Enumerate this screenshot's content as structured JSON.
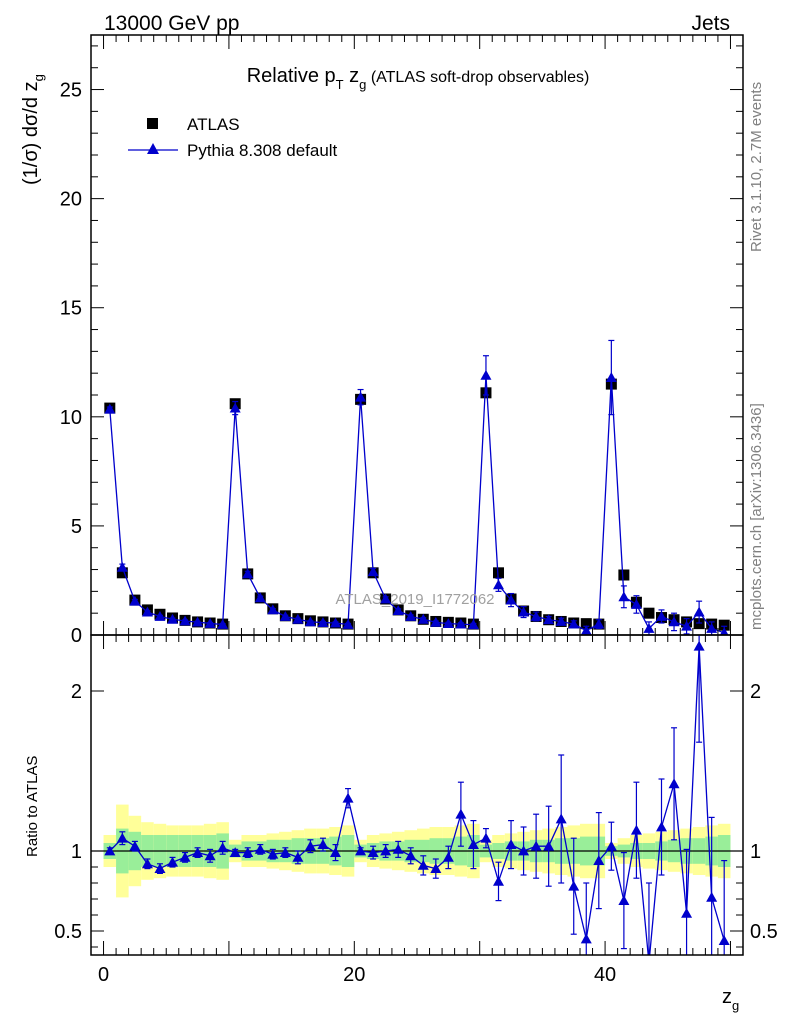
{
  "header": {
    "left": "13000 GeV pp",
    "right": "Jets"
  },
  "side_labels": {
    "rivet": "Rivet 3.1.10,  2.7M events",
    "mcplots": "mcplots.cern.ch [arXiv:1306.3436]"
  },
  "watermark": "ATLAS_2019_I1772062",
  "chart_data": {
    "type": "scatter",
    "title": "Relative pT zg (ATLAS soft-drop observables)",
    "ylabel": "(1/σ) dσ/d zg",
    "xlabel": "zg",
    "ratio_ylabel": "Ratio to ATLAS",
    "xlim": [
      -1,
      51
    ],
    "ylim": [
      0,
      27.5
    ],
    "ratio_ylim": [
      0.35,
      2.35
    ],
    "xticks": [
      0,
      20,
      40
    ],
    "yticks": [
      0,
      5,
      10,
      15,
      20,
      25
    ],
    "ratio_yticks": [
      0.5,
      1,
      2
    ],
    "ratio_reference": 1,
    "legend_placement": "top-left",
    "colors": {
      "data": "#000000",
      "mc": "#0000cc",
      "band_inner": "#99ee99",
      "band_outer": "#ffff99"
    },
    "series": [
      {
        "name": "ATLAS",
        "x": [
          0.5,
          1.5,
          2.5,
          3.5,
          4.5,
          5.5,
          6.5,
          7.5,
          8.5,
          9.5,
          10.5,
          11.5,
          12.5,
          13.5,
          14.5,
          15.5,
          16.5,
          17.5,
          18.5,
          19.5,
          20.5,
          21.5,
          22.5,
          23.5,
          24.5,
          25.5,
          26.5,
          27.5,
          28.5,
          29.5,
          30.5,
          31.5,
          32.5,
          33.5,
          34.5,
          35.5,
          36.5,
          37.5,
          38.5,
          39.5,
          40.5,
          41.5,
          42.5,
          43.5,
          44.5,
          45.5,
          46.5,
          47.5,
          48.5,
          49.5
        ],
        "y": [
          10.4,
          2.85,
          1.6,
          1.15,
          0.95,
          0.78,
          0.67,
          0.6,
          0.55,
          0.5,
          10.6,
          2.8,
          1.7,
          1.2,
          0.88,
          0.75,
          0.65,
          0.6,
          0.55,
          0.5,
          10.8,
          2.85,
          1.65,
          1.15,
          0.88,
          0.72,
          0.62,
          0.58,
          0.55,
          0.5,
          11.1,
          2.85,
          1.65,
          1.1,
          0.85,
          0.7,
          0.62,
          0.55,
          0.52,
          0.5,
          11.5,
          2.75,
          1.5,
          1.0,
          0.8,
          0.7,
          0.6,
          0.52,
          0.5,
          0.45
        ]
      },
      {
        "name": "Pythia 8.308 default",
        "x": [
          0.5,
          1.5,
          2.5,
          3.5,
          4.5,
          5.5,
          6.5,
          7.5,
          8.5,
          9.5,
          10.5,
          11.5,
          12.5,
          13.5,
          14.5,
          15.5,
          16.5,
          17.5,
          18.5,
          19.5,
          20.5,
          21.5,
          22.5,
          23.5,
          24.5,
          25.5,
          26.5,
          27.5,
          28.5,
          29.5,
          30.5,
          31.5,
          32.5,
          33.5,
          34.5,
          35.5,
          36.5,
          37.5,
          38.5,
          39.5,
          40.5,
          41.5,
          42.5,
          43.5,
          44.5,
          45.5,
          46.5,
          47.5,
          48.5,
          49.5
        ],
        "y": [
          10.35,
          3.1,
          1.55,
          1.05,
          0.85,
          0.72,
          0.64,
          0.59,
          0.53,
          0.48,
          10.4,
          2.8,
          1.7,
          1.15,
          0.85,
          0.72,
          0.6,
          0.57,
          0.55,
          0.48,
          10.9,
          2.9,
          1.65,
          1.12,
          0.85,
          0.72,
          0.58,
          0.52,
          0.5,
          0.47,
          11.9,
          2.3,
          1.6,
          1.05,
          0.85,
          0.7,
          0.62,
          0.5,
          0.2,
          0.5,
          11.8,
          1.75,
          1.4,
          0.3,
          0.85,
          0.6,
          0.4,
          1.05,
          0.3,
          0.1
        ],
        "yerr": [
          0.1,
          0.15,
          0.08,
          0.06,
          0.05,
          0.05,
          0.05,
          0.04,
          0.04,
          0.04,
          0.3,
          0.12,
          0.08,
          0.06,
          0.06,
          0.05,
          0.05,
          0.05,
          0.05,
          0.05,
          0.35,
          0.15,
          0.1,
          0.08,
          0.07,
          0.07,
          0.06,
          0.06,
          0.06,
          0.06,
          0.9,
          0.3,
          0.3,
          0.25,
          0.2,
          0.15,
          0.15,
          0.15,
          0.2,
          0.2,
          1.7,
          0.5,
          0.4,
          0.3,
          0.3,
          0.4,
          0.35,
          0.5,
          0.3,
          0.3
        ]
      }
    ],
    "ratio": {
      "x": [
        0.5,
        1.5,
        2.5,
        3.5,
        4.5,
        5.5,
        6.5,
        7.5,
        8.5,
        9.5,
        10.5,
        11.5,
        12.5,
        13.5,
        14.5,
        15.5,
        16.5,
        17.5,
        18.5,
        19.5,
        20.5,
        21.5,
        22.5,
        23.5,
        24.5,
        25.5,
        26.5,
        27.5,
        28.5,
        29.5,
        30.5,
        31.5,
        32.5,
        33.5,
        34.5,
        35.5,
        36.5,
        37.5,
        38.5,
        39.5,
        40.5,
        41.5,
        42.5,
        43.5,
        44.5,
        45.5,
        46.5,
        47.5,
        48.5,
        49.5
      ],
      "y": [
        1.0,
        1.08,
        1.03,
        0.92,
        0.89,
        0.93,
        0.96,
        0.99,
        0.97,
        1.02,
        0.99,
        0.99,
        1.01,
        0.98,
        0.99,
        0.96,
        1.03,
        1.04,
        0.99,
        1.33,
        1.0,
        0.99,
        1.0,
        1.01,
        0.97,
        0.91,
        0.89,
        0.96,
        1.23,
        1.04,
        1.08,
        0.81,
        1.04,
        1.0,
        1.03,
        1.03,
        1.2,
        0.78,
        0.45,
        0.94,
        1.03,
        0.69,
        1.13,
        0.3,
        1.15,
        1.42,
        0.61,
        2.28,
        0.71,
        0.44
      ],
      "yerr": [
        0.02,
        0.04,
        0.03,
        0.03,
        0.03,
        0.03,
        0.03,
        0.03,
        0.04,
        0.04,
        0.02,
        0.03,
        0.03,
        0.03,
        0.03,
        0.04,
        0.04,
        0.04,
        0.05,
        0.06,
        0.02,
        0.04,
        0.04,
        0.05,
        0.05,
        0.06,
        0.06,
        0.07,
        0.2,
        0.15,
        0.06,
        0.12,
        0.15,
        0.15,
        0.2,
        0.25,
        0.4,
        0.3,
        0.35,
        0.3,
        0.15,
        0.3,
        0.3,
        0.5,
        0.3,
        0.35,
        0.4,
        0.6,
        0.5,
        0.5
      ],
      "band_inner": [
        0.05,
        0.14,
        0.12,
        0.1,
        0.1,
        0.1,
        0.1,
        0.1,
        0.1,
        0.11,
        0.04,
        0.06,
        0.06,
        0.07,
        0.07,
        0.08,
        0.08,
        0.08,
        0.09,
        0.1,
        0.04,
        0.05,
        0.06,
        0.06,
        0.07,
        0.07,
        0.08,
        0.08,
        0.09,
        0.1,
        0.04,
        0.05,
        0.06,
        0.06,
        0.07,
        0.07,
        0.08,
        0.08,
        0.09,
        0.09,
        0.03,
        0.04,
        0.05,
        0.05,
        0.06,
        0.07,
        0.08,
        0.08,
        0.09,
        0.1
      ],
      "band_outer": [
        0.1,
        0.29,
        0.22,
        0.18,
        0.17,
        0.16,
        0.16,
        0.16,
        0.17,
        0.18,
        0.07,
        0.1,
        0.1,
        0.11,
        0.12,
        0.13,
        0.14,
        0.14,
        0.15,
        0.16,
        0.07,
        0.1,
        0.11,
        0.12,
        0.13,
        0.14,
        0.15,
        0.15,
        0.16,
        0.17,
        0.07,
        0.1,
        0.11,
        0.12,
        0.13,
        0.14,
        0.15,
        0.16,
        0.17,
        0.17,
        0.05,
        0.08,
        0.1,
        0.11,
        0.12,
        0.13,
        0.14,
        0.15,
        0.16,
        0.17
      ]
    }
  }
}
